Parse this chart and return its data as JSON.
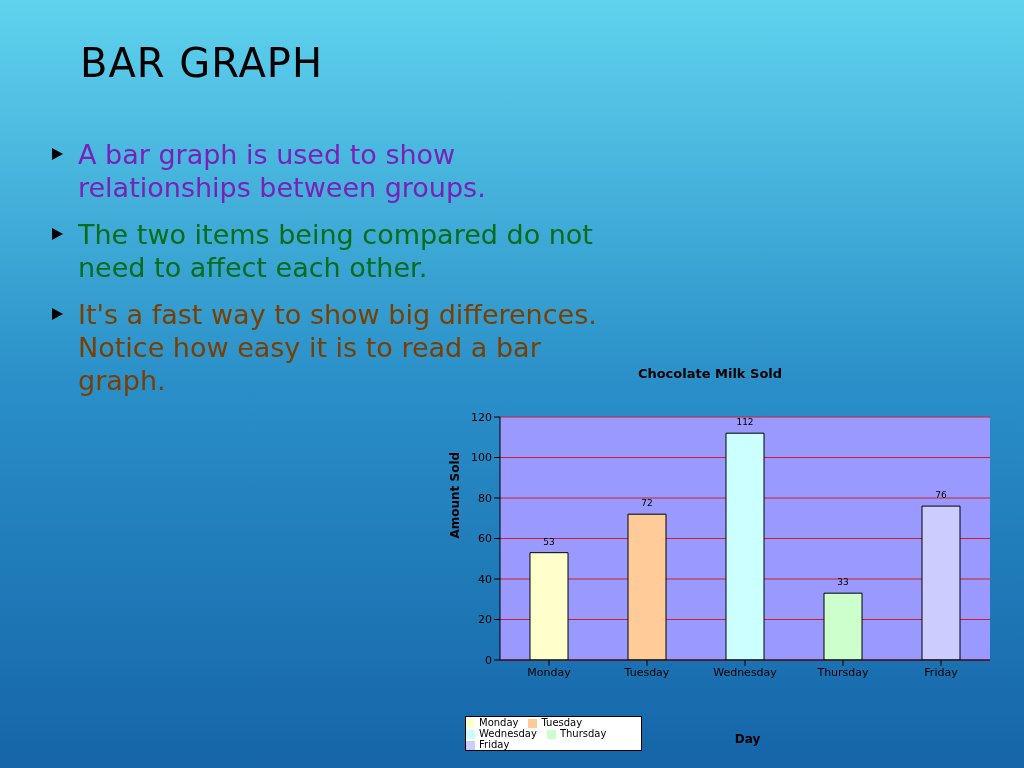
{
  "chart_data": {
    "type": "bar",
    "title": "BAR GRAPH",
    "subtitle": "Chocolate Milk Sold",
    "annotations": [
      "A bar graph is used to show relationships between groups.",
      "The two items being compared do not need to affect each other.",
      "It's a fast way to show big differences. Notice how easy it is to read a bar graph."
    ],
    "categories": [
      "Monday",
      "Tuesday",
      "Wednesday",
      "Thursday",
      "Friday"
    ],
    "series": [
      {
        "name": "Monday",
        "color": "#ffffcc",
        "values": [
          53,
          null,
          null,
          null,
          null
        ]
      },
      {
        "name": "Tuesday",
        "color": "#ffcc99",
        "values": [
          null,
          72,
          null,
          null,
          null
        ]
      },
      {
        "name": "Wednesday",
        "color": "#ccffff",
        "values": [
          null,
          null,
          112,
          null,
          null
        ]
      },
      {
        "name": "Thursday",
        "color": "#ccffcc",
        "values": [
          null,
          null,
          null,
          33,
          null
        ]
      },
      {
        "name": "Friday",
        "color": "#ccccff",
        "values": [
          null,
          null,
          null,
          null,
          76
        ]
      }
    ],
    "stacked": true,
    "xlabel": "Day",
    "ylabel": "Amount Sold",
    "ylim": [
      0,
      120
    ],
    "yticks": [
      0,
      20,
      40,
      60,
      80,
      100,
      120
    ],
    "grid": "y",
    "legend": "bottom left",
    "data_labels": true
  }
}
